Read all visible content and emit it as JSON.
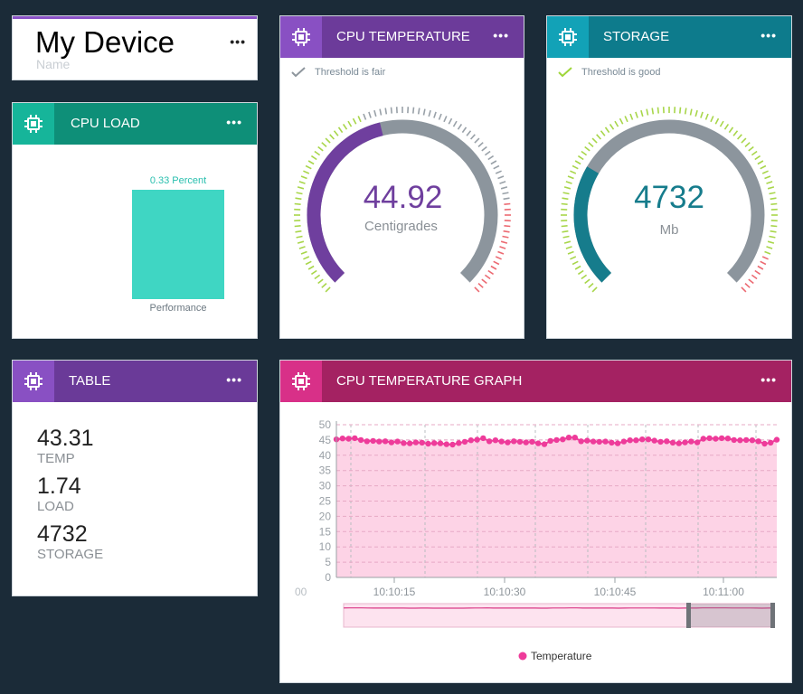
{
  "device": {
    "title": "My Device",
    "subtitle": "Name",
    "menu": "•••"
  },
  "cpu_load": {
    "title": "CPU LOAD",
    "menu": "•••",
    "bar_label": "0.33 Percent",
    "bar_value": 0.33,
    "caption": "Performance",
    "color": "#3fd6c3",
    "header_color": "#0e8f78",
    "icon_color": "#16b59a"
  },
  "cpu_temp": {
    "title": "CPU TEMPERATURE",
    "menu": "•••",
    "status": "Threshold is fair",
    "value": "44.92",
    "unit": "Centigrades",
    "value_numeric": 44.92,
    "scale_max": 100,
    "color": "#6f3f9e",
    "header_color": "#6c3b9a",
    "icon_color": "#8950c3"
  },
  "storage": {
    "title": "STORAGE",
    "menu": "•••",
    "status": "Threshold is good",
    "value": "4732",
    "unit": "Mb",
    "fill_fraction": 0.28,
    "color": "#167c8c",
    "header_color": "#0d7b8c",
    "icon_color": "#12a2b7"
  },
  "table": {
    "title": "TABLE",
    "menu": "•••",
    "rows": [
      {
        "value": "43.31",
        "label": "TEMP"
      },
      {
        "value": "1.74",
        "label": "LOAD"
      },
      {
        "value": "4732",
        "label": "STORAGE"
      }
    ],
    "header_color": "#6a3a98",
    "icon_color": "#8950c3"
  },
  "temp_graph": {
    "title": "CPU TEMPERATURE GRAPH",
    "menu": "•••",
    "header_color": "#a42262",
    "icon_color": "#d83088",
    "x_edge_label": "00",
    "legend": "Temperature"
  },
  "chart_data": {
    "type": "area",
    "series": [
      {
        "name": "Temperature",
        "color": "#ee3b9a",
        "values": [
          45.2,
          45.5,
          45.4,
          45.6,
          45.0,
          44.6,
          44.7,
          44.5,
          44.6,
          44.2,
          44.5,
          44.0,
          43.9,
          44.2,
          44.1,
          43.8,
          44.0,
          43.9,
          43.6,
          43.5,
          44.0,
          44.4,
          44.9,
          45.1,
          45.6,
          44.6,
          44.9,
          44.5,
          44.2,
          44.6,
          44.4,
          44.2,
          44.4,
          43.9,
          43.6,
          44.7,
          45.0,
          45.2,
          45.8,
          45.8,
          44.6,
          44.8,
          44.5,
          44.4,
          44.5,
          44.1,
          43.9,
          44.5,
          44.9,
          44.9,
          45.2,
          45.2,
          44.8,
          44.4,
          44.6,
          44.1,
          43.9,
          44.2,
          44.5,
          44.2,
          45.4,
          45.6,
          45.4,
          45.6,
          45.5,
          45.0,
          44.9,
          45.0,
          44.9,
          44.6,
          43.8,
          44.1,
          45.1
        ]
      }
    ],
    "x_tick_labels": [
      "10:10:15",
      "10:10:30",
      "10:10:45",
      "10:11:00"
    ],
    "y_ticks": [
      "0",
      "5",
      "10",
      "15",
      "20",
      "25",
      "30",
      "35",
      "40",
      "45",
      "50"
    ],
    "ylim": [
      0,
      50
    ],
    "grid": true,
    "legend_position": "bottom"
  }
}
